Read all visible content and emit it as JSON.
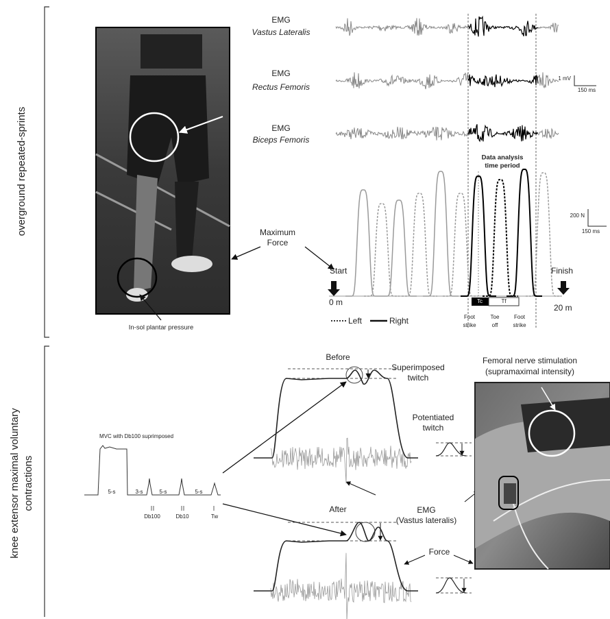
{
  "sprints": {
    "section_label": "overground repeated-sprints",
    "insole_label": "In-sol plantar pressure",
    "emg": [
      {
        "title": "EMG",
        "muscle": "Vastus Lateralis"
      },
      {
        "title": "EMG",
        "muscle": "Rectus Femoris"
      },
      {
        "title": "EMG",
        "muscle": "Biceps Femoris"
      }
    ],
    "emg_scale": {
      "amplitude": "1 mV",
      "time": "150 ms"
    },
    "analysis_period": [
      "Data analysis",
      "time period"
    ],
    "force_scale": {
      "amplitude": "200 N",
      "time": "150 ms"
    },
    "max_force": [
      "Maximum",
      "Force"
    ],
    "start": "Start",
    "start_distance": "0 m",
    "finish": "Finish",
    "finish_distance": "20 m",
    "legend": {
      "left": "Left",
      "right": "Right"
    },
    "events": [
      [
        "Foot",
        "strike"
      ],
      [
        "Toe",
        "off"
      ],
      [
        "Foot",
        "strike"
      ]
    ],
    "phases": {
      "contact": "Tc",
      "flight": "Tf"
    }
  },
  "contractions": {
    "section_label": [
      "knee extensor maximal voluntary",
      "contractions"
    ],
    "mvc_title": "MVC with Db100 suprimposed",
    "durations": [
      "5-s",
      "3-s",
      "5-s",
      "5-s"
    ],
    "stimuli": [
      "Db100",
      "Db10",
      "Tw"
    ],
    "before": "Before",
    "after": "After",
    "superimposed": [
      "Superimposed",
      "twitch"
    ],
    "potentiated": [
      "Potentiated",
      "twitch"
    ],
    "emg": [
      "EMG",
      "(Vastus lateralis)"
    ],
    "force": "Force",
    "stimulation": [
      "Femoral nerve stimulation",
      "(supramaximal intensity)"
    ]
  }
}
